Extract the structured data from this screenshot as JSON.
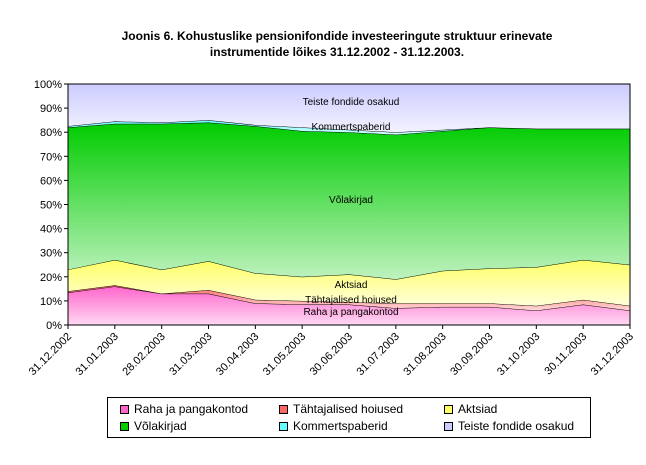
{
  "chart_data": {
    "type": "area",
    "stacked": "percent",
    "title": "Joonis 6. Kohustuslike pensionifondide investeeringute struktuur erinevate instrumentide lõikes 31.12.2002 - 31.12.2003.",
    "title_lines": [
      "Joonis 6. Kohustuslike pensionifondide investeeringute struktuur erinevate",
      "instrumentide lõikes 31.12.2002 - 31.12.2003."
    ],
    "categories": [
      "31.12.2002",
      "31.01.2003",
      "28.02.2003",
      "31.03.2003",
      "30.04.2003",
      "31.05.2003",
      "30.06.2003",
      "31.07.2003",
      "31.08.2003",
      "30.09.2003",
      "31.10.2003",
      "30.11.2003",
      "31.12.2003"
    ],
    "ylim": [
      0,
      100
    ],
    "yticks": [
      "0%",
      "10%",
      "20%",
      "30%",
      "40%",
      "50%",
      "60%",
      "70%",
      "80%",
      "90%",
      "100%"
    ],
    "legend_position": "bottom",
    "series": [
      {
        "name": "Raha ja pangakontod",
        "color": "#FF66CC",
        "values": [
          13.5,
          16,
          13,
          13,
          9,
          8.5,
          8.5,
          7,
          7.5,
          7.5,
          6,
          8.5,
          6
        ]
      },
      {
        "name": "Tähtajalised hoiused",
        "color": "#FF6666",
        "values": [
          0.5,
          0.5,
          0,
          1.5,
          1.5,
          1.5,
          1,
          2,
          1.5,
          1.5,
          2,
          2,
          2
        ]
      },
      {
        "name": "Aktsiad",
        "color": "#FFFF66",
        "values": [
          9,
          10.5,
          10,
          12,
          11,
          10,
          11.5,
          10,
          13.5,
          14.5,
          16,
          16.5,
          17
        ]
      },
      {
        "name": "Võlakirjad",
        "color": "#00CC00",
        "values": [
          59,
          56.5,
          60.5,
          57.5,
          61,
          60.5,
          59,
          60,
          58,
          58.5,
          57.5,
          54.5,
          56.5
        ]
      },
      {
        "name": "Kommertspaberid",
        "color": "#66FFFF",
        "values": [
          0.5,
          1,
          0.5,
          1,
          0.5,
          1.5,
          1,
          1,
          0.5,
          0,
          0,
          0,
          0
        ]
      },
      {
        "name": "Teiste fondide osakud",
        "color": "#CCCCFF",
        "values": [
          17.5,
          15.5,
          16,
          15,
          17,
          18,
          19,
          20,
          19,
          18,
          18.5,
          18.5,
          18.5
        ]
      }
    ],
    "data_labels": [
      "Raha ja pangakontod",
      "Tähtajalised hoiused",
      "Aktsiad",
      "Võlakirjad",
      "Kommertspaberid",
      "Teiste fondide osakud"
    ]
  }
}
